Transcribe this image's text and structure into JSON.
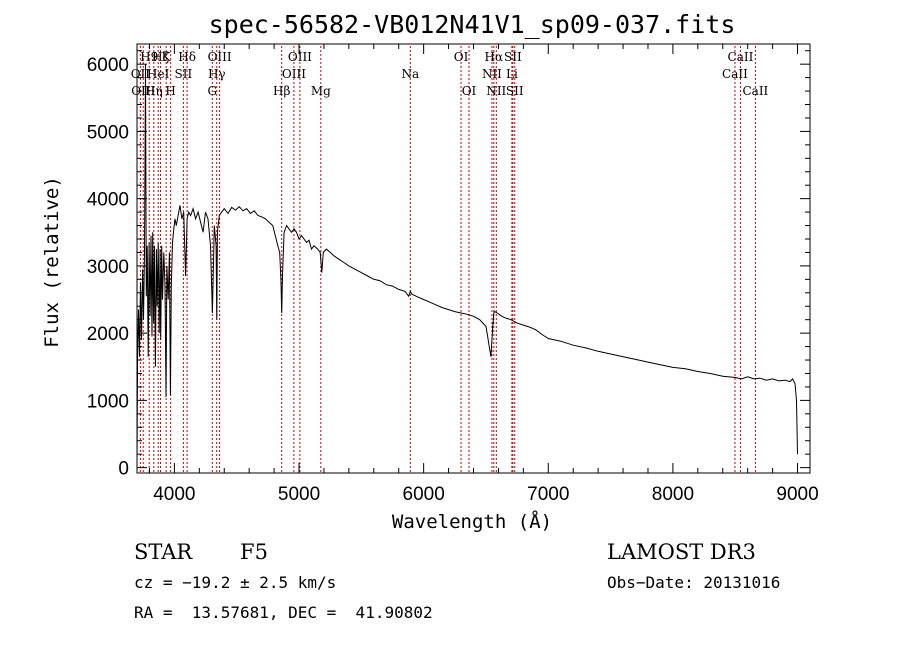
{
  "chart_data": {
    "type": "line",
    "title": "spec-56582-VB012N41V1_sp09-037.fits",
    "xlabel": "Wavelength (Å)",
    "ylabel": "Flux (relative)",
    "xlim": [
      3700,
      9100
    ],
    "ylim": [
      -80,
      6300
    ],
    "xticks": [
      4000,
      5000,
      6000,
      7000,
      8000,
      9000
    ],
    "yticks": [
      0,
      1000,
      2000,
      3000,
      4000,
      5000,
      6000
    ],
    "series": [
      {
        "name": "spectrum",
        "x": [
          3700,
          3705,
          3712,
          3720,
          3728,
          3736,
          3745,
          3752,
          3760,
          3768,
          3775,
          3782,
          3790,
          3797,
          3805,
          3812,
          3820,
          3826,
          3833,
          3840,
          3848,
          3856,
          3862,
          3870,
          3878,
          3885,
          3890,
          3898,
          3905,
          3915,
          3925,
          3933,
          3940,
          3950,
          3960,
          3968,
          3975,
          3985,
          3995,
          4005,
          4015,
          4030,
          4045,
          4060,
          4075,
          4090,
          4102,
          4115,
          4130,
          4150,
          4170,
          4190,
          4210,
          4230,
          4250,
          4270,
          4290,
          4305,
          4320,
          4335,
          4340,
          4345,
          4360,
          4380,
          4400,
          4430,
          4460,
          4490,
          4520,
          4550,
          4580,
          4610,
          4640,
          4670,
          4700,
          4730,
          4760,
          4790,
          4810,
          4830,
          4845,
          4855,
          4861,
          4868,
          4880,
          4900,
          4920,
          4940,
          4960,
          4980,
          5000,
          5020,
          5040,
          5060,
          5080,
          5100,
          5120,
          5150,
          5170,
          5183,
          5195,
          5220,
          5250,
          5280,
          5320,
          5360,
          5400,
          5450,
          5500,
          5550,
          5600,
          5650,
          5700,
          5750,
          5800,
          5850,
          5880,
          5893,
          5905,
          5950,
          6000,
          6050,
          6100,
          6150,
          6200,
          6250,
          6300,
          6350,
          6400,
          6450,
          6500,
          6540,
          6555,
          6563,
          6570,
          6590,
          6620,
          6650,
          6700,
          6750,
          6800,
          6850,
          6900,
          6950,
          7000,
          7100,
          7200,
          7300,
          7400,
          7500,
          7600,
          7700,
          7800,
          7900,
          8000,
          8100,
          8200,
          8300,
          8400,
          8500,
          8550,
          8600,
          8650,
          8700,
          8750,
          8800,
          8850,
          8900,
          8940,
          8960,
          8980,
          8992,
          9000
        ],
        "values": [
          50,
          1700,
          2350,
          1650,
          2750,
          1900,
          2950,
          2200,
          3200,
          6000,
          2550,
          3300,
          1650,
          3350,
          2250,
          3450,
          1950,
          3500,
          2150,
          3300,
          1500,
          3250,
          2400,
          3350,
          2000,
          3250,
          1900,
          3300,
          2500,
          3200,
          2700,
          1050,
          3000,
          2500,
          3200,
          1080,
          2700,
          3350,
          3550,
          3700,
          3600,
          3750,
          3900,
          3700,
          3800,
          2850,
          3700,
          3800,
          3750,
          3850,
          3700,
          3800,
          3650,
          3500,
          3800,
          3700,
          3300,
          2300,
          3600,
          3300,
          2200,
          3500,
          3750,
          3800,
          3850,
          3780,
          3870,
          3830,
          3880,
          3820,
          3850,
          3780,
          3820,
          3750,
          3730,
          3700,
          3650,
          3600,
          3450,
          3300,
          3200,
          2800,
          2300,
          2900,
          3500,
          3600,
          3550,
          3500,
          3550,
          3500,
          3400,
          3450,
          3400,
          3350,
          3380,
          3250,
          3300,
          3250,
          3200,
          2900,
          3200,
          3250,
          3200,
          3150,
          3100,
          3050,
          3000,
          2950,
          2900,
          2850,
          2800,
          2780,
          2720,
          2700,
          2650,
          2620,
          2550,
          2620,
          2580,
          2540,
          2500,
          2460,
          2420,
          2380,
          2350,
          2320,
          2300,
          2280,
          2250,
          2200,
          2100,
          1650,
          2100,
          2300,
          2320,
          2300,
          2260,
          2230,
          2200,
          2150,
          2120,
          2090,
          2050,
          1980,
          1920,
          1880,
          1820,
          1780,
          1730,
          1690,
          1650,
          1610,
          1570,
          1530,
          1490,
          1470,
          1430,
          1400,
          1360,
          1340,
          1320,
          1350,
          1320,
          1330,
          1300,
          1320,
          1290,
          1300,
          1280,
          1320,
          1250,
          1000,
          200
        ]
      }
    ],
    "spectral_lines": [
      {
        "wavelength": 3727,
        "label": "OII",
        "row": 1
      },
      {
        "wavelength": 3750,
        "label": "OIII",
        "row": 2
      },
      {
        "wavelength": 3798,
        "label": "H9",
        "row": 0
      },
      {
        "wavelength": 3835,
        "label": "Hη",
        "row": 2
      },
      {
        "wavelength": 3870,
        "label": "HeI",
        "row": 1
      },
      {
        "wavelength": 3889,
        "label": "Hζ",
        "row": 0
      },
      {
        "wavelength": 3934,
        "label": "K",
        "row": 0
      },
      {
        "wavelength": 3970,
        "label": "H",
        "row": 2
      },
      {
        "wavelength": 4072,
        "label": "SII",
        "row": 1
      },
      {
        "wavelength": 4102,
        "label": "Hδ",
        "row": 0
      },
      {
        "wavelength": 4304,
        "label": "G",
        "row": 2
      },
      {
        "wavelength": 4340,
        "label": "Hγ",
        "row": 1
      },
      {
        "wavelength": 4363,
        "label": "OIII",
        "row": 0
      },
      {
        "wavelength": 4861,
        "label": "Hβ",
        "row": 2
      },
      {
        "wavelength": 4959,
        "label": "OIII",
        "row": 1
      },
      {
        "wavelength": 5007,
        "label": "OIII",
        "row": 0
      },
      {
        "wavelength": 5175,
        "label": "Mg",
        "row": 2
      },
      {
        "wavelength": 5893,
        "label": "Na",
        "row": 1
      },
      {
        "wavelength": 6300,
        "label": "OI",
        "row": 0
      },
      {
        "wavelength": 6364,
        "label": "OI",
        "row": 2
      },
      {
        "wavelength": 6548,
        "label": "NII",
        "row": 1
      },
      {
        "wavelength": 6563,
        "label": "Hα",
        "row": 0
      },
      {
        "wavelength": 6583,
        "label": "NII",
        "row": 2
      },
      {
        "wavelength": 6708,
        "label": "Li",
        "row": 1
      },
      {
        "wavelength": 6716,
        "label": "SII",
        "row": 0
      },
      {
        "wavelength": 6731,
        "label": "SII",
        "row": 2
      },
      {
        "wavelength": 8498,
        "label": "CaII",
        "row": 1
      },
      {
        "wavelength": 8542,
        "label": "CaII",
        "row": 0
      },
      {
        "wavelength": 8662,
        "label": "CaII",
        "row": 2
      }
    ],
    "colors": {
      "line": "#000000",
      "marker": "#c00000",
      "axis": "#000000"
    }
  },
  "info": {
    "classification": "STAR",
    "subclass": "F5",
    "survey": "LAMOST DR3",
    "redshift": "cz = −19.2 ± 2.5 km/s",
    "obs_date": "Obs−Date: 20131016",
    "coords": "RA =  13.57681, DEC =  41.90802"
  }
}
